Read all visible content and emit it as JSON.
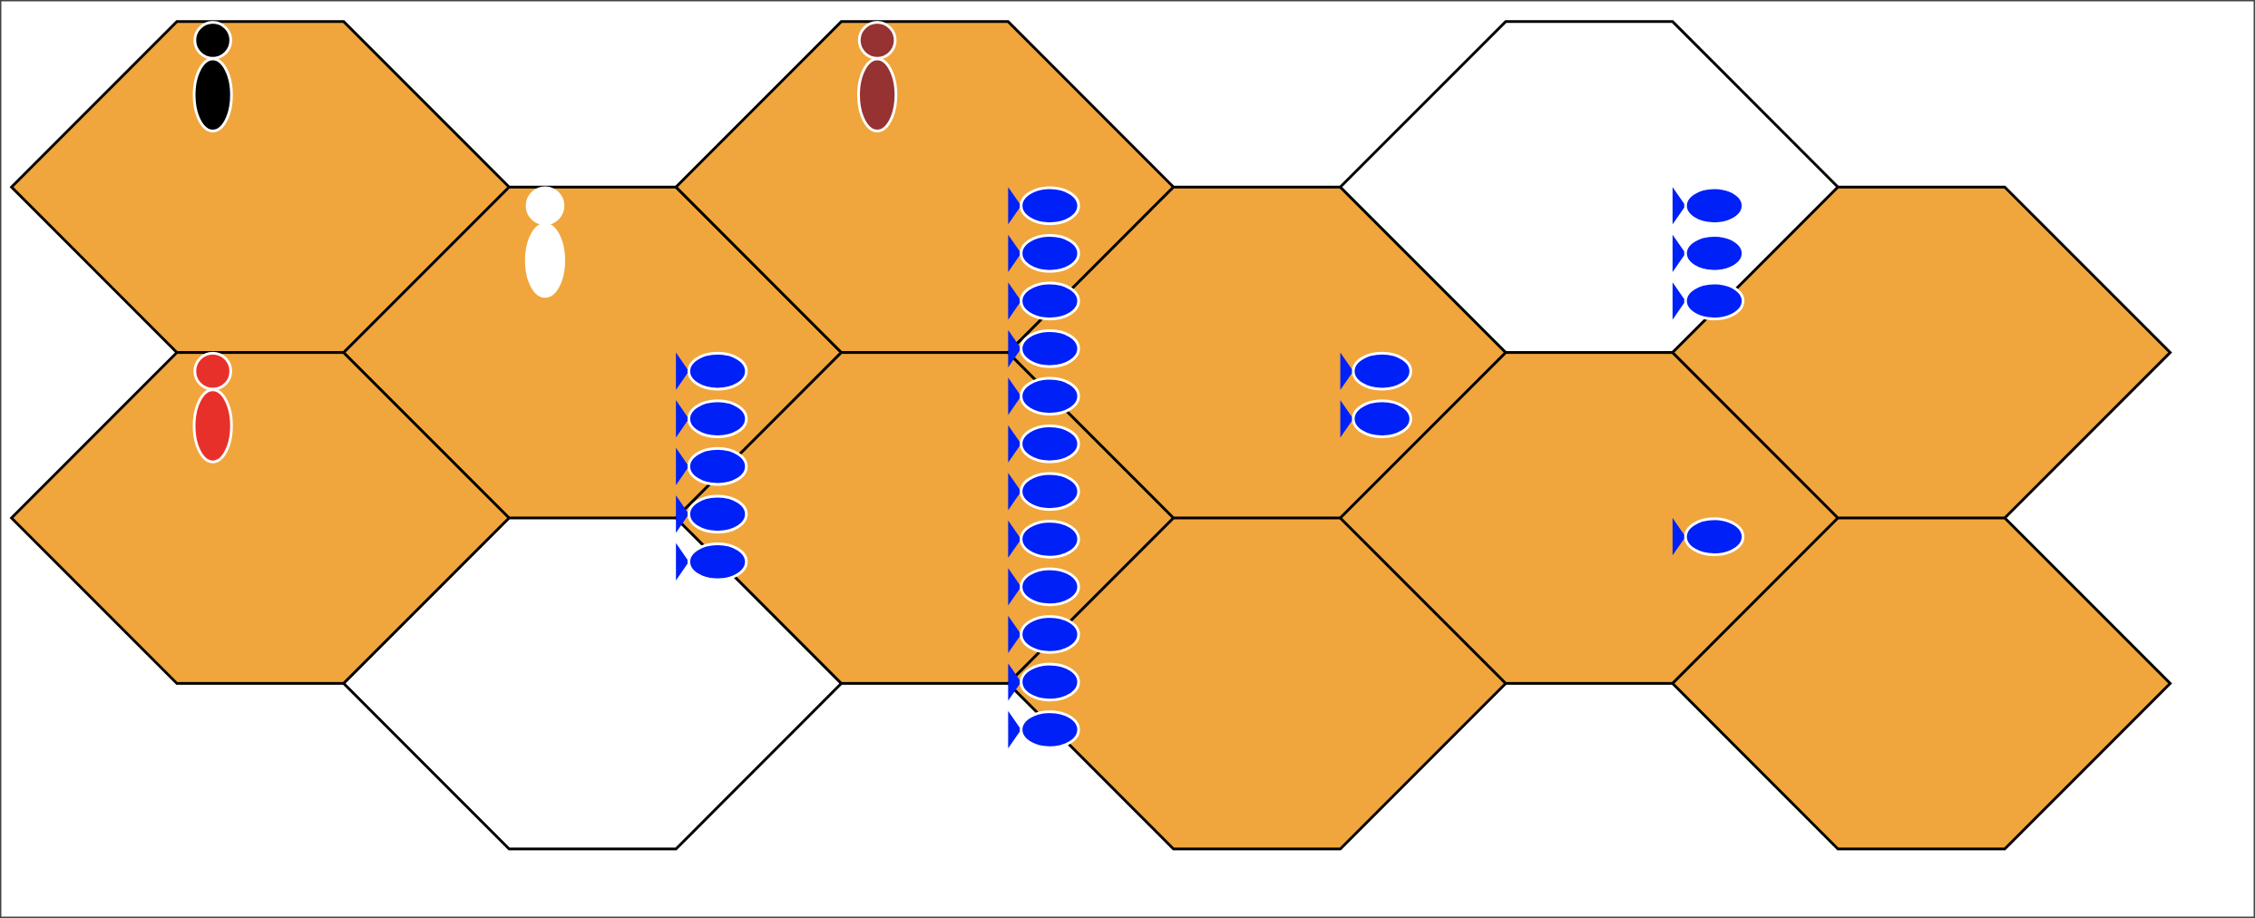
{
  "colors": {
    "land": "#f0a63c",
    "water": "#ffffff",
    "hex_outline": "#000000",
    "frame": "#444444",
    "stack_piece": "#0020f8",
    "piece_outline": "#ffffff"
  },
  "hexes": [
    {
      "col": 0,
      "row": 0,
      "terrain": "land"
    },
    {
      "col": 0,
      "row": 1,
      "terrain": "land"
    },
    {
      "col": 1,
      "row": 0,
      "terrain": "land"
    },
    {
      "col": 1,
      "row": 1,
      "terrain": "water"
    },
    {
      "col": 2,
      "row": 0,
      "terrain": "land"
    },
    {
      "col": 2,
      "row": 1,
      "terrain": "land"
    },
    {
      "col": 3,
      "row": 0,
      "terrain": "land"
    },
    {
      "col": 3,
      "row": 1,
      "terrain": "land"
    },
    {
      "col": 4,
      "row": 0,
      "terrain": "water"
    },
    {
      "col": 4,
      "row": 1,
      "terrain": "land"
    },
    {
      "col": 5,
      "row": 0,
      "terrain": "land"
    },
    {
      "col": 5,
      "row": 1,
      "terrain": "land"
    }
  ],
  "pieces": [
    {
      "col": 0,
      "row": 0,
      "color": "black",
      "fill": "#000000"
    },
    {
      "col": 0,
      "row": 1,
      "color": "red",
      "fill": "#e8302a"
    },
    {
      "col": 1,
      "row": 0,
      "color": "white",
      "fill": "#ffffff"
    },
    {
      "col": 2,
      "row": 0,
      "color": "brown",
      "fill": "#963232"
    }
  ],
  "stacks": [
    {
      "col": 2,
      "row": 1,
      "count": 5
    },
    {
      "col": 3,
      "row": 0,
      "count": 12
    },
    {
      "col": 4,
      "row": 1,
      "count": 2
    },
    {
      "col": 5,
      "row": 0,
      "count": 3
    },
    {
      "col": 5,
      "row": 1,
      "count": 1
    }
  ]
}
